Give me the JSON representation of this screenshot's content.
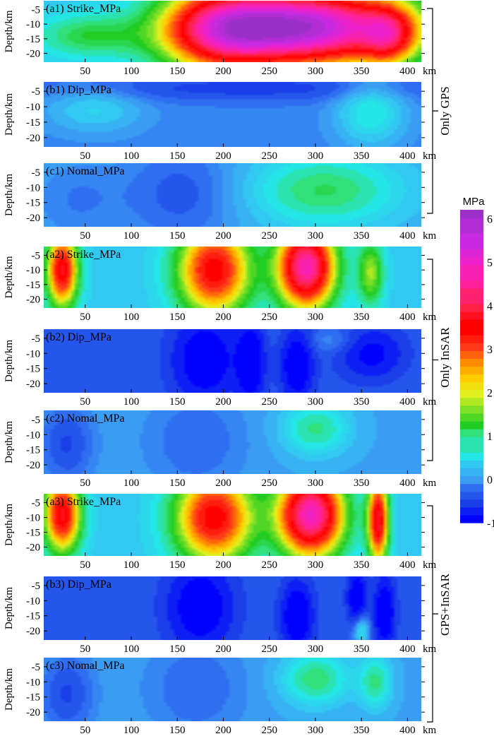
{
  "chart_data": [
    {
      "type": "heatmap",
      "title": "(a1) Strike_MPa",
      "ylabel": "Depth/km",
      "xlabel": "km",
      "x_ticks": [
        50,
        100,
        150,
        200,
        250,
        300,
        350,
        400
      ],
      "y_ticks": [
        -5,
        -10,
        -15,
        -20
      ],
      "xlim": [
        5,
        415
      ],
      "ylim": [
        -23,
        -2
      ],
      "blobs": [
        {
          "x": 290,
          "y": -11,
          "sx": 75,
          "sy": 9,
          "v": 5.5
        },
        {
          "x": 195,
          "y": -12,
          "sx": 45,
          "sy": 10,
          "v": 3
        },
        {
          "x": 380,
          "y": -14,
          "sx": 20,
          "sy": 7,
          "v": 2
        },
        {
          "x": 55,
          "y": -14,
          "sx": 40,
          "sy": 5,
          "v": 0.9
        }
      ],
      "base": 0.3
    },
    {
      "type": "heatmap",
      "title": "(b1) Dip_MPa",
      "ylabel": "Depth/km",
      "xlabel": "km",
      "x_ticks": [
        50,
        100,
        150,
        200,
        250,
        300,
        350,
        400
      ],
      "y_ticks": [
        -5,
        -10,
        -15,
        -20
      ],
      "xlim": [
        5,
        415
      ],
      "ylim": [
        -23,
        -2
      ],
      "blobs": [
        {
          "x": 360,
          "y": -12,
          "sx": 25,
          "sy": 7,
          "v": 0.8
        },
        {
          "x": 60,
          "y": -11,
          "sx": 35,
          "sy": 5,
          "v": 0.5
        },
        {
          "x": 230,
          "y": -4,
          "sx": 140,
          "sy": 3,
          "v": -0.4
        }
      ],
      "base": -0.1
    },
    {
      "type": "heatmap",
      "title": "(c1) Nomal_MPa",
      "ylabel": "Depth/km",
      "xlabel": "km",
      "x_ticks": [
        50,
        100,
        150,
        200,
        250,
        300,
        350,
        400
      ],
      "y_ticks": [
        -5,
        -10,
        -15,
        -20
      ],
      "xlim": [
        5,
        415
      ],
      "ylim": [
        -23,
        -2
      ],
      "blobs": [
        {
          "x": 310,
          "y": -11,
          "sx": 55,
          "sy": 8,
          "v": 1.0
        },
        {
          "x": 155,
          "y": -12,
          "sx": 45,
          "sy": 12,
          "v": -0.45
        },
        {
          "x": 40,
          "y": -14,
          "sx": 35,
          "sy": 10,
          "v": -0.25
        }
      ],
      "base": 0.1
    },
    {
      "type": "heatmap",
      "title": "(a2) Strike_MPa",
      "ylabel": "Depth/km",
      "xlabel": "km",
      "x_ticks": [
        50,
        100,
        150,
        200,
        250,
        300,
        350,
        400
      ],
      "y_ticks": [
        -5,
        -10,
        -15,
        -20
      ],
      "xlim": [
        5,
        415
      ],
      "ylim": [
        -23,
        -2
      ],
      "blobs": [
        {
          "x": 25,
          "y": -10,
          "sx": 12,
          "sy": 9,
          "v": 3.4
        },
        {
          "x": 190,
          "y": -10,
          "sx": 28,
          "sy": 11,
          "v": 3.3
        },
        {
          "x": 290,
          "y": -9,
          "sx": 22,
          "sy": 10,
          "v": 4.5
        },
        {
          "x": 360,
          "y": -11,
          "sx": 10,
          "sy": 8,
          "v": 1.5
        }
      ],
      "base": 0.3
    },
    {
      "type": "heatmap",
      "title": "(b2) Dip_MPa",
      "ylabel": "Depth/km",
      "xlabel": "km",
      "x_ticks": [
        50,
        100,
        150,
        200,
        250,
        300,
        350,
        400
      ],
      "y_ticks": [
        -5,
        -10,
        -15,
        -20
      ],
      "xlim": [
        5,
        415
      ],
      "ylim": [
        -23,
        -2
      ],
      "blobs": [
        {
          "x": 180,
          "y": -12,
          "sx": 25,
          "sy": 10,
          "v": -0.9
        },
        {
          "x": 230,
          "y": -13,
          "sx": 10,
          "sy": 9,
          "v": -1
        },
        {
          "x": 280,
          "y": -14,
          "sx": 12,
          "sy": 8,
          "v": -1
        },
        {
          "x": 360,
          "y": -10,
          "sx": 25,
          "sy": 6,
          "v": -0.7
        },
        {
          "x": 320,
          "y": -6,
          "sx": 20,
          "sy": 3,
          "v": 0.3
        }
      ],
      "base": -0.3
    },
    {
      "type": "heatmap",
      "title": "(c2) Nomal_MPa",
      "ylabel": "Depth/km",
      "xlabel": "km",
      "x_ticks": [
        50,
        100,
        150,
        200,
        250,
        300,
        350,
        400
      ],
      "y_ticks": [
        -5,
        -10,
        -15,
        -20
      ],
      "xlim": [
        5,
        415
      ],
      "ylim": [
        -23,
        -2
      ],
      "blobs": [
        {
          "x": 300,
          "y": -8,
          "sx": 25,
          "sy": 6,
          "v": 0.9
        },
        {
          "x": 30,
          "y": -13,
          "sx": 20,
          "sy": 9,
          "v": -0.5
        },
        {
          "x": 170,
          "y": -12,
          "sx": 40,
          "sy": 12,
          "v": -0.3
        }
      ],
      "base": 0.05
    },
    {
      "type": "heatmap",
      "title": "(a3) Strike_MPa",
      "ylabel": "Depth/km",
      "xlabel": "km",
      "x_ticks": [
        50,
        100,
        150,
        200,
        250,
        300,
        350,
        400
      ],
      "y_ticks": [
        -5,
        -10,
        -15,
        -20
      ],
      "xlim": [
        5,
        415
      ],
      "ylim": [
        -23,
        -2
      ],
      "blobs": [
        {
          "x": 25,
          "y": -9,
          "sx": 14,
          "sy": 9,
          "v": 3.4
        },
        {
          "x": 190,
          "y": -10,
          "sx": 30,
          "sy": 11,
          "v": 3.3
        },
        {
          "x": 295,
          "y": -9,
          "sx": 25,
          "sy": 10,
          "v": 4.6
        },
        {
          "x": 368,
          "y": -11,
          "sx": 8,
          "sy": 10,
          "v": 3.5
        }
      ],
      "base": 0.3
    },
    {
      "type": "heatmap",
      "title": "(b3) Dip_MPa",
      "ylabel": "Depth/km",
      "xlabel": "km",
      "x_ticks": [
        50,
        100,
        150,
        200,
        250,
        300,
        350,
        400
      ],
      "y_ticks": [
        -5,
        -10,
        -15,
        -20
      ],
      "xlim": [
        5,
        415
      ],
      "ylim": [
        -23,
        -2
      ],
      "blobs": [
        {
          "x": 175,
          "y": -12,
          "sx": 25,
          "sy": 10,
          "v": -0.9
        },
        {
          "x": 280,
          "y": -15,
          "sx": 12,
          "sy": 8,
          "v": -1
        },
        {
          "x": 345,
          "y": -9,
          "sx": 7,
          "sy": 6,
          "v": -1
        },
        {
          "x": 375,
          "y": -14,
          "sx": 8,
          "sy": 8,
          "v": -1
        },
        {
          "x": 350,
          "y": -20,
          "sx": 6,
          "sy": 4,
          "v": 0.9
        }
      ],
      "base": -0.3
    },
    {
      "type": "heatmap",
      "title": "(c3) Nomal_MPa",
      "ylabel": "Depth/km",
      "xlabel": "km",
      "x_ticks": [
        50,
        100,
        150,
        200,
        250,
        300,
        350,
        400
      ],
      "y_ticks": [
        -5,
        -10,
        -15,
        -20
      ],
      "xlim": [
        5,
        415
      ],
      "ylim": [
        -23,
        -2
      ],
      "blobs": [
        {
          "x": 300,
          "y": -9,
          "sx": 25,
          "sy": 6,
          "v": 1.0
        },
        {
          "x": 365,
          "y": -10,
          "sx": 12,
          "sy": 6,
          "v": 0.9
        },
        {
          "x": 30,
          "y": -14,
          "sx": 20,
          "sy": 9,
          "v": -0.5
        },
        {
          "x": 170,
          "y": -12,
          "sx": 40,
          "sy": 12,
          "v": -0.3
        }
      ],
      "base": 0.05
    }
  ],
  "groups": [
    "Only GPS",
    "Only InSAR",
    "GPS+InSAR"
  ],
  "colorbar": {
    "title": "MPa",
    "ticks": [
      "6",
      "5",
      "4",
      "3",
      "2",
      "1",
      "0",
      "-1"
    ],
    "range": [
      -1,
      6.2
    ],
    "colors": [
      {
        "v": -1.0,
        "c": "#0000ff"
      },
      {
        "v": -0.5,
        "c": "#1a3ee8"
      },
      {
        "v": -0.2,
        "c": "#2f6ef0"
      },
      {
        "v": 0.0,
        "c": "#3b9cf3"
      },
      {
        "v": 0.3,
        "c": "#33c8f2"
      },
      {
        "v": 0.6,
        "c": "#24e6e6"
      },
      {
        "v": 1.0,
        "c": "#31e07a"
      },
      {
        "v": 1.3,
        "c": "#22cc22"
      },
      {
        "v": 1.7,
        "c": "#7de026"
      },
      {
        "v": 2.0,
        "c": "#e0f020"
      },
      {
        "v": 2.3,
        "c": "#ffcc00"
      },
      {
        "v": 2.6,
        "c": "#ff8c00"
      },
      {
        "v": 3.0,
        "c": "#ff3a1a"
      },
      {
        "v": 3.5,
        "c": "#ff0000"
      },
      {
        "v": 4.0,
        "c": "#ff2244"
      },
      {
        "v": 4.5,
        "c": "#ff2299"
      },
      {
        "v": 5.0,
        "c": "#ee22cc"
      },
      {
        "v": 5.5,
        "c": "#c82ae0"
      },
      {
        "v": 6.2,
        "c": "#9b30c8"
      }
    ]
  }
}
